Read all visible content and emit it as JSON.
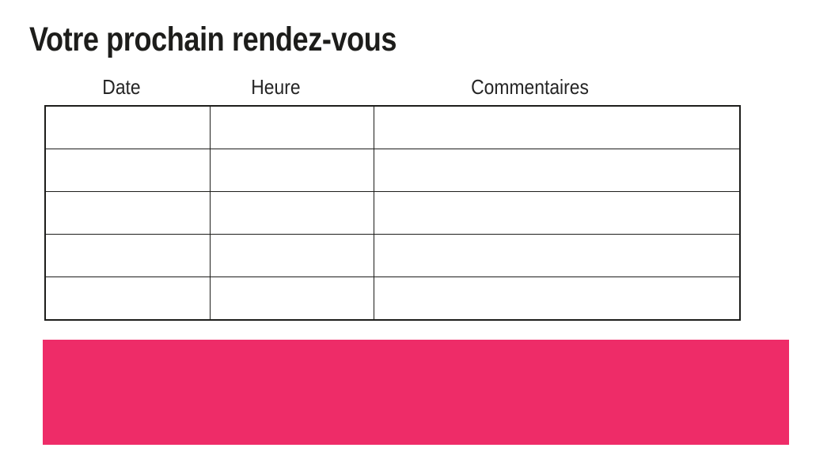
{
  "page": {
    "title": "Votre prochain rendez-vous"
  },
  "table": {
    "headers": [
      "Date",
      "Heure",
      "Commentaires"
    ],
    "rows": [
      {
        "cells": [
          "",
          "",
          ""
        ]
      },
      {
        "cells": [
          "",
          "",
          ""
        ]
      },
      {
        "cells": [
          "",
          "",
          ""
        ]
      },
      {
        "cells": [
          "",
          "",
          ""
        ]
      },
      {
        "cells": [
          "",
          "",
          ""
        ]
      }
    ]
  },
  "banner": {
    "text": "",
    "color": "#ee2c68"
  },
  "colors": {
    "title_text": "#1d1d1b",
    "header_text": "#252525",
    "table_border": "#1d1d1b",
    "background": "#ffffff"
  }
}
